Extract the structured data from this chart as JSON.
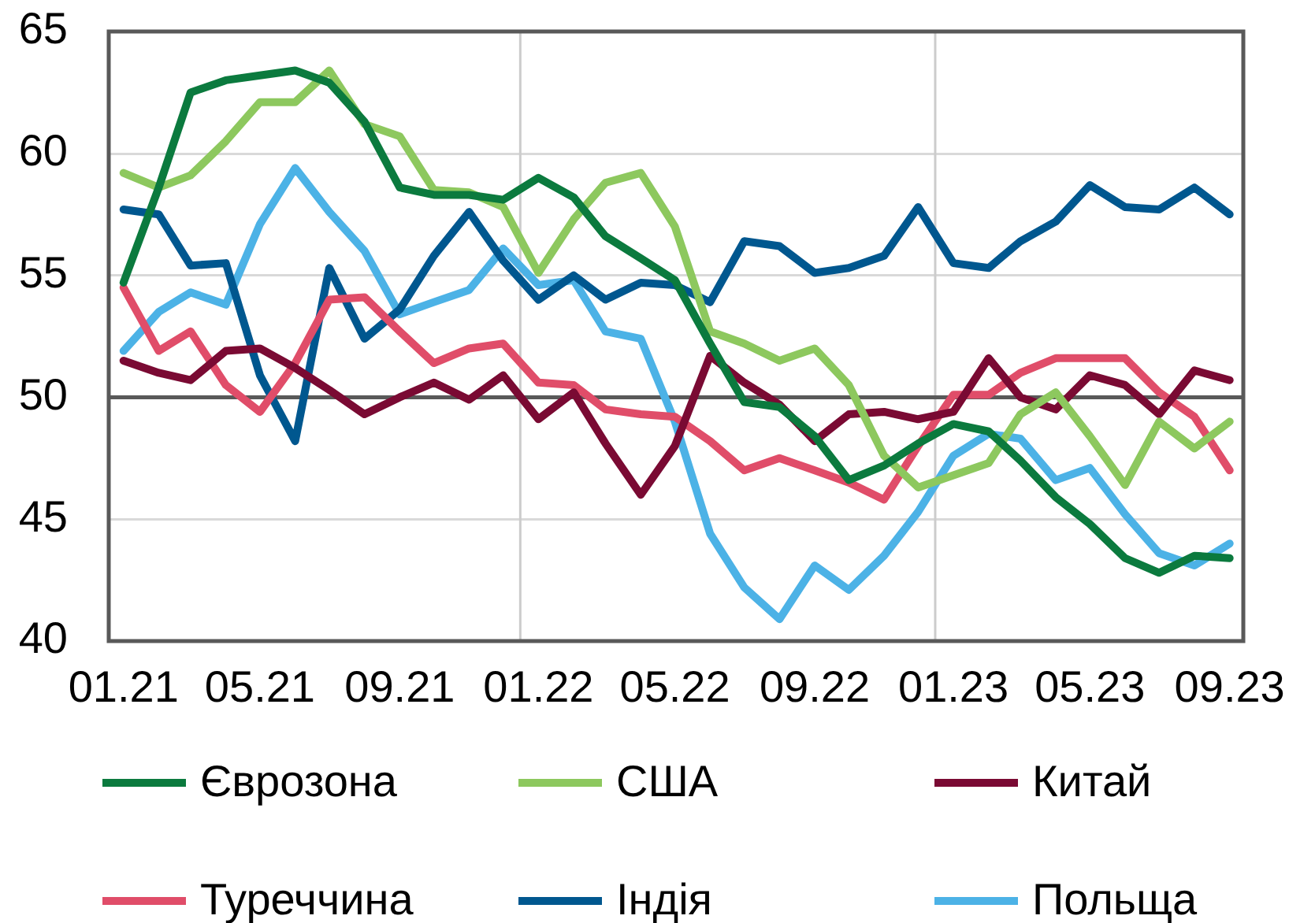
{
  "chart_data": {
    "type": "line",
    "x": [
      "2021-01",
      "2021-02",
      "2021-03",
      "2021-04",
      "2021-05",
      "2021-06",
      "2021-07",
      "2021-08",
      "2021-09",
      "2021-10",
      "2021-11",
      "2021-12",
      "2022-01",
      "2022-02",
      "2022-03",
      "2022-04",
      "2022-05",
      "2022-06",
      "2022-07",
      "2022-08",
      "2022-09",
      "2022-10",
      "2022-11",
      "2022-12",
      "2023-01",
      "2023-02",
      "2023-03",
      "2023-04",
      "2023-05",
      "2023-06",
      "2023-07",
      "2023-08",
      "2023-09"
    ],
    "series": [
      {
        "name": "Єврозона",
        "color": "#0b7a3e",
        "values": [
          54.7,
          58.6,
          62.5,
          63.0,
          63.2,
          63.4,
          62.9,
          61.3,
          58.6,
          58.3,
          58.3,
          58.1,
          59.0,
          58.2,
          56.6,
          55.7,
          54.8,
          52.2,
          49.8,
          49.6,
          48.4,
          46.6,
          47.2,
          48.1,
          48.9,
          48.6,
          47.4,
          45.9,
          44.8,
          43.4,
          42.8,
          43.5,
          43.4
        ]
      },
      {
        "name": "США",
        "color": "#8dc85e",
        "values": [
          59.2,
          58.6,
          59.1,
          60.5,
          62.1,
          62.1,
          63.4,
          61.2,
          60.7,
          58.5,
          58.4,
          57.8,
          55.1,
          57.3,
          58.8,
          59.2,
          57.0,
          52.7,
          52.2,
          51.5,
          52.0,
          50.5,
          47.6,
          46.3,
          46.8,
          47.3,
          49.3,
          50.2,
          48.4,
          46.4,
          49.0,
          47.9,
          49.0
        ]
      },
      {
        "name": "Китай",
        "color": "#7a0a33",
        "values": [
          51.5,
          51.0,
          50.7,
          51.9,
          52.0,
          51.2,
          50.3,
          49.3,
          50.0,
          50.6,
          49.9,
          50.9,
          49.1,
          50.2,
          48.1,
          46.0,
          48.0,
          51.7,
          50.6,
          49.7,
          48.2,
          49.3,
          49.4,
          49.1,
          49.4,
          51.6,
          50.0,
          49.5,
          50.9,
          50.5,
          49.3,
          51.1,
          50.7
        ]
      },
      {
        "name": "Туреччина",
        "color": "#e04d69",
        "values": [
          54.5,
          51.9,
          52.7,
          50.5,
          49.4,
          51.4,
          54.0,
          54.1,
          52.7,
          51.4,
          52.0,
          52.2,
          50.6,
          50.5,
          49.5,
          49.3,
          49.2,
          48.2,
          47.0,
          47.5,
          47.0,
          46.5,
          45.8,
          48.0,
          50.1,
          50.1,
          51.0,
          51.6,
          51.6,
          51.6,
          50.2,
          49.2,
          47.0
        ]
      },
      {
        "name": "Індія",
        "color": "#00578f",
        "values": [
          57.7,
          57.5,
          55.4,
          55.5,
          50.9,
          48.2,
          55.3,
          52.4,
          53.6,
          55.8,
          57.6,
          55.6,
          54.0,
          55.0,
          54.0,
          54.7,
          54.6,
          53.9,
          56.4,
          56.2,
          55.1,
          55.3,
          55.8,
          57.8,
          55.5,
          55.3,
          56.4,
          57.2,
          58.7,
          57.8,
          57.7,
          58.6,
          57.5
        ]
      },
      {
        "name": "Польща",
        "color": "#4cb2e6",
        "values": [
          51.9,
          53.5,
          54.3,
          53.8,
          57.1,
          59.4,
          57.6,
          56.0,
          53.4,
          53.9,
          54.4,
          56.1,
          54.6,
          54.8,
          52.7,
          52.4,
          49.0,
          44.4,
          42.2,
          40.9,
          43.1,
          42.1,
          43.5,
          45.3,
          47.6,
          48.5,
          48.3,
          46.6,
          47.1,
          45.2,
          43.6,
          43.1,
          44.0
        ]
      }
    ],
    "xlim": [
      "2020-12-19",
      "2023-09-13"
    ],
    "xticks": [
      {
        "value": "2021-01",
        "label": "01.21"
      },
      {
        "value": "2021-05",
        "label": "05.21"
      },
      {
        "value": "2021-09",
        "label": "09.21"
      },
      {
        "value": "2022-01",
        "label": "01.22"
      },
      {
        "value": "2022-05",
        "label": "05.22"
      },
      {
        "value": "2022-09",
        "label": "09.22"
      },
      {
        "value": "2023-01",
        "label": "01.23"
      },
      {
        "value": "2023-05",
        "label": "05.23"
      },
      {
        "value": "2023-09",
        "label": "09.23"
      }
    ],
    "ylim": [
      40,
      65
    ],
    "yticks": [
      40,
      45,
      50,
      55,
      60,
      65
    ],
    "grid": "y",
    "legend": "bottom",
    "ref_lines": [
      {
        "axis": "x",
        "value": "2021-12-16",
        "color": "#cccccc"
      },
      {
        "axis": "x",
        "value": "2022-12-16",
        "color": "#cccccc"
      },
      {
        "axis": "y",
        "value": 50,
        "color": "#595959"
      }
    ]
  }
}
